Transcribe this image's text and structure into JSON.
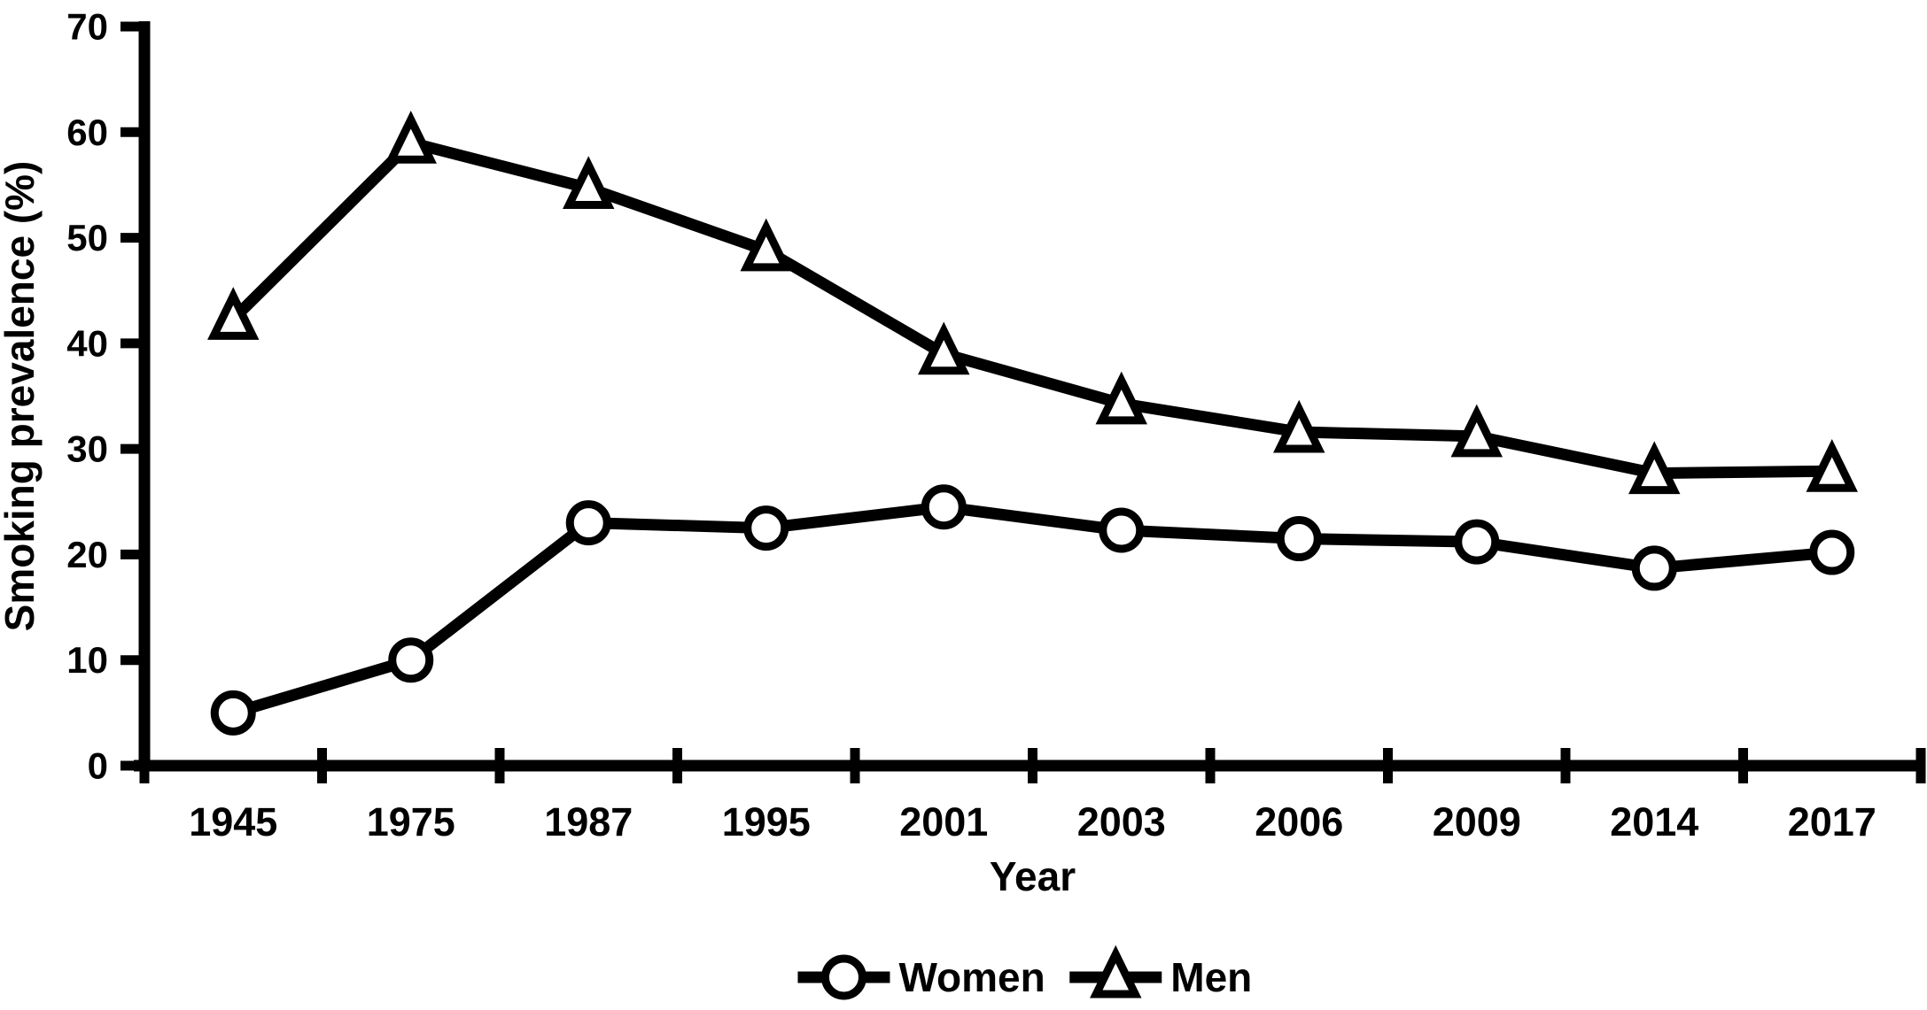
{
  "chart_data": {
    "type": "line",
    "title": "",
    "xlabel": "Year",
    "ylabel": "Smoking prevalence (%)",
    "categories": [
      "1945",
      "1975",
      "1987",
      "1995",
      "2001",
      "2003",
      "2006",
      "2009",
      "2014",
      "2017"
    ],
    "series": [
      {
        "name": "Women",
        "marker": "circle",
        "values": [
          5,
          10,
          23,
          22.5,
          24.5,
          22.3,
          21.5,
          21.2,
          18.7,
          20.2
        ]
      },
      {
        "name": "Men",
        "marker": "triangle",
        "values": [
          42.3,
          59,
          54.7,
          48.8,
          39,
          34.3,
          31.6,
          31.2,
          27.7,
          27.9
        ]
      }
    ],
    "ylim": [
      0,
      70
    ],
    "y_ticks": [
      0,
      10,
      20,
      30,
      40,
      50,
      60,
      70
    ],
    "grid": false,
    "legend_position": "bottom-center",
    "colors": {
      "line": "#000000",
      "marker_fill": "#ffffff",
      "background": "#ffffff",
      "text": "#000000"
    }
  }
}
